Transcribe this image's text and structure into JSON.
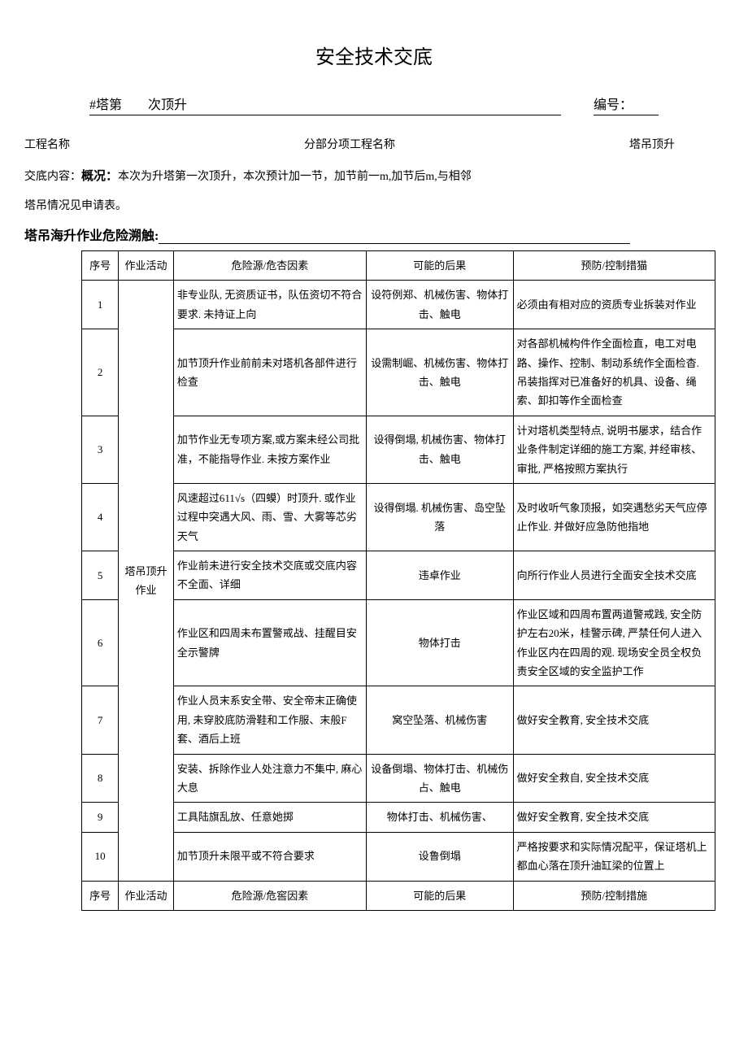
{
  "title": "安全技术交底",
  "subtitle_left": "#塔第　　次顶升",
  "subtitle_right_label": "编号：",
  "project_label": "工程名称",
  "subproject_label": "分部分项工程名称",
  "subproject_value": "塔吊顶升",
  "context_label": "交底内容：",
  "overview_label": "概况：",
  "overview_text": "本次为升塔第一次顶升，本次预计加一节，加节前一m,加节后m,与相邻",
  "context_line2": "塔吊情况见申请表。",
  "section_title": "塔吊海升作业危险溯触:",
  "table": {
    "columns": [
      "序号",
      "作业活动",
      "危险源/危杏因素",
      "可能的后果",
      "预防/控制措猫"
    ],
    "activity_label": "塔吊顶升作业",
    "rows": [
      {
        "num": "1",
        "hazard": "非专业队, 无资质证书，队伍资切不符合要求. 未持证上向",
        "consequence": "设符例郑、机械伤害、物体打击、触电",
        "control": "必须由有相对应的资质专业拆装对作业"
      },
      {
        "num": "2",
        "hazard": "加节顶升作业前前未对塔机各部件进行检查",
        "consequence": "设需制崛、机械伤害、物体打击、触电",
        "control": "对各部机械构件作全面检直，电工对电路、操作、控制、制动系统作全面检杳. 吊装指挥对已准备好的机具、设备、绳索、卸扣等作全面检查"
      },
      {
        "num": "3",
        "hazard": "加节作业无专项方案,或方案未经公司批准，不能指导作业. 未按方案作业",
        "consequence": "设得倒塌, 机械伤害、物体打击、触电",
        "control": "计对塔机类型特点, 说明书屡求，结合作业条件制定详细的施工方案, 并经审核、审批, 严格按照方案执行"
      },
      {
        "num": "4",
        "hazard": "风速超过611√s（四蟆）时顶升. 或作业过程中突遇大风、雨、雪、大雾等芯劣天气",
        "consequence": "设得倒塌. 机械伤害、岛空坠落",
        "control": "及时收听气象顶报，如突遇愁劣天气应停止作业. 并做好应急防他指地"
      },
      {
        "num": "5",
        "hazard": "作业前未进行安全技术交底或交底内容不全面、详细",
        "consequence": "违卓作业",
        "control": "向所行作业人员进行全面安全技术交底"
      },
      {
        "num": "6",
        "hazard": "作业区和四周未布置警戒战、挂醒目安全示警牌",
        "consequence": "物体打击",
        "control": "作业区域和四周布置两道警戒践, 安全防护左右20米，桂警示碑, 严禁任何人进入作业区内在四周的观. 现场安全员全权负责安全区域的安全监护工作"
      },
      {
        "num": "7",
        "hazard": "作业人员末系安全带、安全帝末正确使用, 未穿胶底防滑鞋和工作服、末般F套、酒后上班",
        "consequence": "窝空坠落、机械伤害",
        "control": "做好安全教育, 安全技术交底"
      },
      {
        "num": "8",
        "hazard": "安装、拆除作业人处注意力不集中, 麻心大息",
        "consequence": "设备倒塌、物体打击、机械伤占、触电",
        "control": "做好安全救自, 安全技术交底"
      },
      {
        "num": "9",
        "hazard": "工具陆旗乱放、任意她掷",
        "consequence": "物体打击、机械伤害、",
        "control": "做好安全教育, 安全技术交底"
      },
      {
        "num": "10",
        "hazard": "加节顶升未限平或不符合要求",
        "consequence": "设鲁倒塌",
        "control": "严格按要求和实际情况配平，保证塔机上都血心落在顶升油缸梁的位置上"
      }
    ],
    "footer_columns": [
      "序号",
      "作业活动",
      "危险源/危窖因素",
      "可能的后果",
      "预防/控制措施"
    ]
  }
}
